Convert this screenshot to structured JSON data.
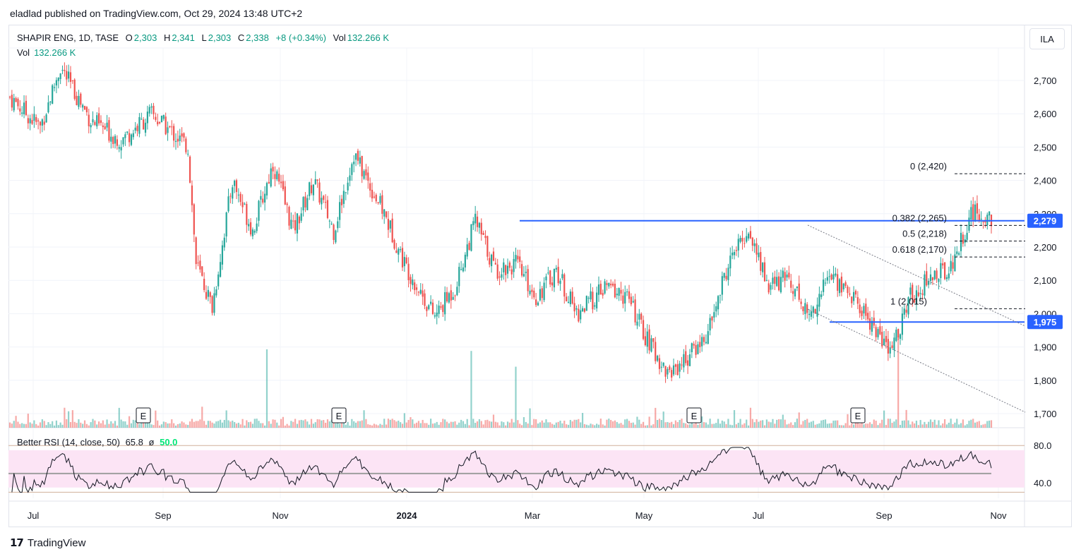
{
  "header": {
    "published": "eladlad published on TradingView.com, Oct 29, 2024 13:48 UTC+2"
  },
  "legend": {
    "symbol": "SHAPIR ENG, 1D, TASE",
    "o_label": "O",
    "o_val": "2,303",
    "h_label": "H",
    "h_val": "2,341",
    "l_label": "L",
    "l_val": "2,303",
    "c_label": "C",
    "c_val": "2,338",
    "change": "+8 (+0.34%)",
    "vol_label": "Vol",
    "vol_val": "132.266 K"
  },
  "volume_legend": {
    "label": "Vol",
    "value": "132.266 K"
  },
  "currency_button": "ILA",
  "rsi_legend": {
    "name": "Better RSI (14, close, 50)",
    "value": "65.8",
    "sym": "ø",
    "mid": "50.0"
  },
  "footer": {
    "brand": "TradingView"
  },
  "colors": {
    "up": "#26a69a",
    "down": "#ef5350",
    "level": "#2962ff",
    "rsi_band": "#fce4f5"
  },
  "chart_data": {
    "type": "candlestick",
    "ylim": [
      1680,
      2760
    ],
    "y_ticks": [
      "2,700",
      "2,600",
      "2,500",
      "2,400",
      "2,300",
      "2,200",
      "2,100",
      "2,000",
      "1,900",
      "1,800",
      "1,700"
    ],
    "y_tick_values": [
      2700,
      2600,
      2500,
      2400,
      2300,
      2200,
      2100,
      2000,
      1900,
      1800,
      1700
    ],
    "x_labels": [
      "Jul",
      "Sep",
      "Nov",
      "2024",
      "Mar",
      "May",
      "Jul",
      "Sep",
      "Nov"
    ],
    "price_labels": [
      {
        "text": "2,279",
        "value": 2279
      },
      {
        "text": "1,975",
        "value": 1975
      }
    ],
    "horizontal_levels": [
      2279,
      1975
    ],
    "fib_levels": [
      {
        "label": "0 (2,420)",
        "value": 2420
      },
      {
        "label": "0.382 (2,265)",
        "value": 2265
      },
      {
        "label": "0.5 (2,218)",
        "value": 2218
      },
      {
        "label": "0.618 (2,170)",
        "value": 2170
      },
      {
        "label": "1 (2,015)",
        "value": 2015
      }
    ],
    "earnings_markers": [
      "E",
      "E",
      "E",
      "E"
    ],
    "close_anchors": [
      [
        0,
        2650
      ],
      [
        15,
        2560
      ],
      [
        25,
        2740
      ],
      [
        40,
        2580
      ],
      [
        55,
        2520
      ],
      [
        70,
        2600
      ],
      [
        88,
        2500
      ],
      [
        92,
        2150
      ],
      [
        100,
        2020
      ],
      [
        110,
        2400
      ],
      [
        120,
        2250
      ],
      [
        130,
        2450
      ],
      [
        140,
        2250
      ],
      [
        150,
        2400
      ],
      [
        160,
        2250
      ],
      [
        170,
        2480
      ],
      [
        185,
        2300
      ],
      [
        195,
        2150
      ],
      [
        210,
        1990
      ],
      [
        220,
        2080
      ],
      [
        230,
        2280
      ],
      [
        240,
        2130
      ],
      [
        250,
        2150
      ],
      [
        260,
        2050
      ],
      [
        270,
        2130
      ],
      [
        280,
        2000
      ],
      [
        295,
        2080
      ],
      [
        305,
        2050
      ],
      [
        315,
        1920
      ],
      [
        325,
        1820
      ],
      [
        335,
        1870
      ],
      [
        345,
        1940
      ],
      [
        355,
        2150
      ],
      [
        365,
        2250
      ],
      [
        375,
        2080
      ],
      [
        385,
        2110
      ],
      [
        395,
        1990
      ],
      [
        405,
        2120
      ],
      [
        415,
        2060
      ],
      [
        425,
        1980
      ],
      [
        435,
        1880
      ],
      [
        445,
        2050
      ],
      [
        455,
        2110
      ],
      [
        465,
        2140
      ],
      [
        475,
        2300
      ],
      [
        485,
        2290
      ]
    ],
    "rsi": {
      "value": 65.8,
      "levels": [
        80.0,
        40.0
      ],
      "midline": 50.0,
      "ylim": [
        25,
        90
      ]
    }
  }
}
